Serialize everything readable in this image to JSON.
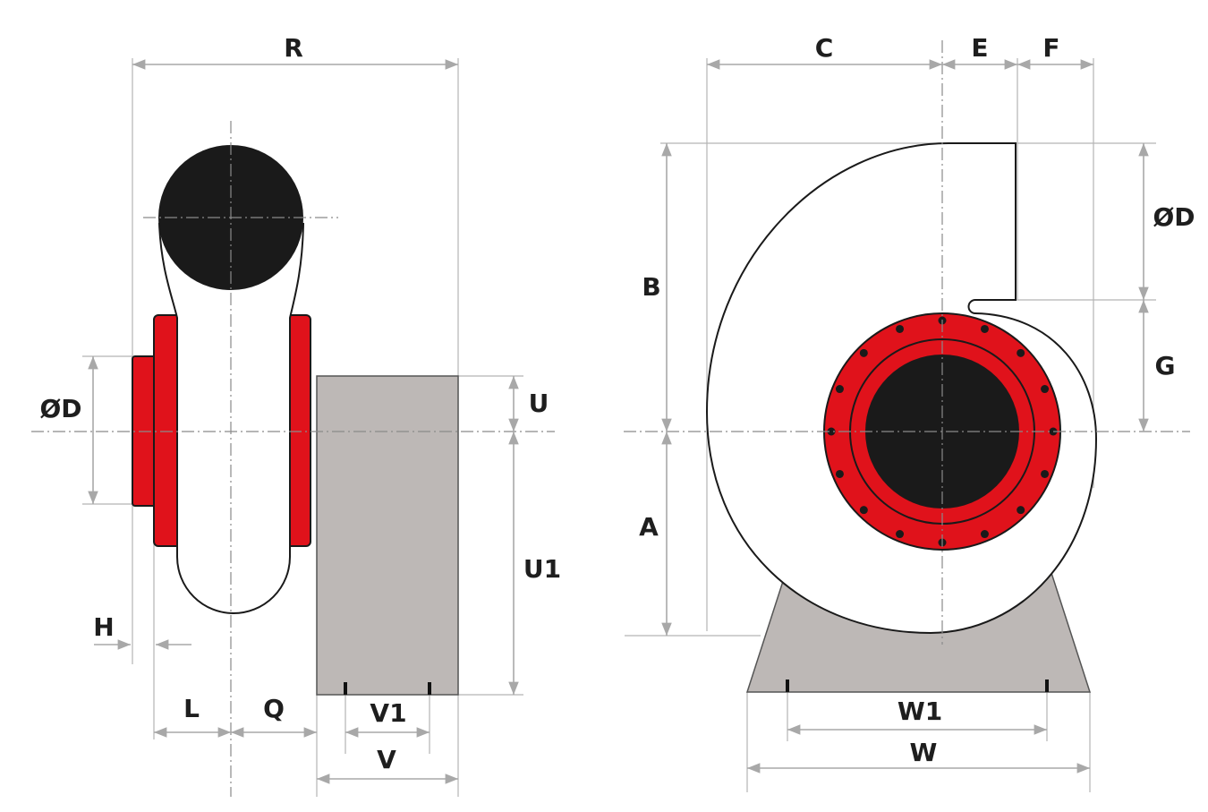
{
  "side_view": {
    "labels": [
      "R",
      "ØD",
      "H",
      "L",
      "Q",
      "V1",
      "V",
      "U",
      "U1"
    ]
  },
  "front_view": {
    "labels": [
      "C",
      "E",
      "F",
      "B",
      "ØD",
      "G",
      "A",
      "W1",
      "W"
    ]
  }
}
